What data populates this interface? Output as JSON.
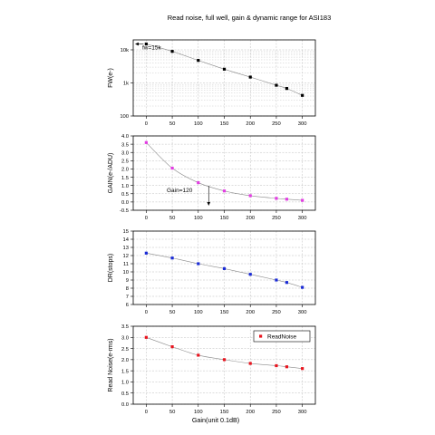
{
  "figure": {
    "title": "Read noise, full well, gain & dynamic range for ASI183",
    "xlabel": "Gain(unit 0.1dB)"
  },
  "chart_data": [
    {
      "type": "line",
      "ylabel": "FW(e-)",
      "yscale": "log",
      "ylim": [
        100,
        20000
      ],
      "yticks": [
        100,
        1000,
        10000
      ],
      "yticklabels": [
        "100",
        "1k",
        "10k"
      ],
      "x": [
        0,
        50,
        100,
        150,
        200,
        250,
        270,
        300
      ],
      "y": [
        15000,
        9000,
        4800,
        2600,
        1500,
        850,
        680,
        420
      ],
      "color": "#000000",
      "annotation": {
        "text": "fw=15k"
      },
      "grid": true
    },
    {
      "type": "line",
      "ylabel": "GAIN(e-/ADU)",
      "ylim": [
        -0.5,
        4.0
      ],
      "yticks": [
        -0.5,
        0.0,
        0.5,
        1.0,
        1.5,
        2.0,
        2.5,
        3.0,
        3.5,
        4.0
      ],
      "yticklabels": [
        "-0.5",
        "0.0",
        "0.5",
        "1.0",
        "1.5",
        "2.0",
        "2.5",
        "3.0",
        "3.5",
        "4.0"
      ],
      "x": [
        0,
        50,
        100,
        150,
        200,
        250,
        270,
        300
      ],
      "y": [
        3.6,
        2.05,
        1.17,
        0.67,
        0.38,
        0.22,
        0.17,
        0.1
      ],
      "color": "#e23de2",
      "annotation": {
        "text": "Gain=120"
      },
      "grid": true
    },
    {
      "type": "line",
      "ylabel": "DR(stops)",
      "ylim": [
        6,
        15
      ],
      "yticks": [
        6,
        7,
        8,
        9,
        10,
        11,
        12,
        13,
        14,
        15
      ],
      "yticklabels": [
        "6",
        "7",
        "8",
        "9",
        "10",
        "11",
        "12",
        "13",
        "14",
        "15"
      ],
      "x": [
        0,
        50,
        100,
        150,
        200,
        250,
        270,
        300
      ],
      "y": [
        12.3,
        11.7,
        11.0,
        10.4,
        9.7,
        9.0,
        8.7,
        8.1
      ],
      "color": "#1a2bd6",
      "grid": true
    },
    {
      "type": "line",
      "ylabel": "Read Noise(e-rms)",
      "ylim": [
        0.0,
        3.5
      ],
      "yticks": [
        0.0,
        0.5,
        1.0,
        1.5,
        2.0,
        2.5,
        3.0,
        3.5
      ],
      "yticklabels": [
        "0.0",
        "0.5",
        "1.0",
        "1.5",
        "2.0",
        "2.5",
        "3.0",
        "3.5"
      ],
      "x": [
        0,
        50,
        100,
        150,
        200,
        250,
        270,
        300
      ],
      "y": [
        3.0,
        2.58,
        2.2,
        2.0,
        1.83,
        1.73,
        1.68,
        1.6
      ],
      "color": "#e8141e",
      "legend": "ReadNoise",
      "legend_position": "top-right",
      "grid": true
    }
  ],
  "xaxis": {
    "ticks": [
      0,
      50,
      100,
      150,
      200,
      250,
      300
    ],
    "ticklabels": [
      "0",
      "50",
      "100",
      "150",
      "200",
      "250",
      "300"
    ],
    "xlim": [
      -25,
      325
    ]
  }
}
